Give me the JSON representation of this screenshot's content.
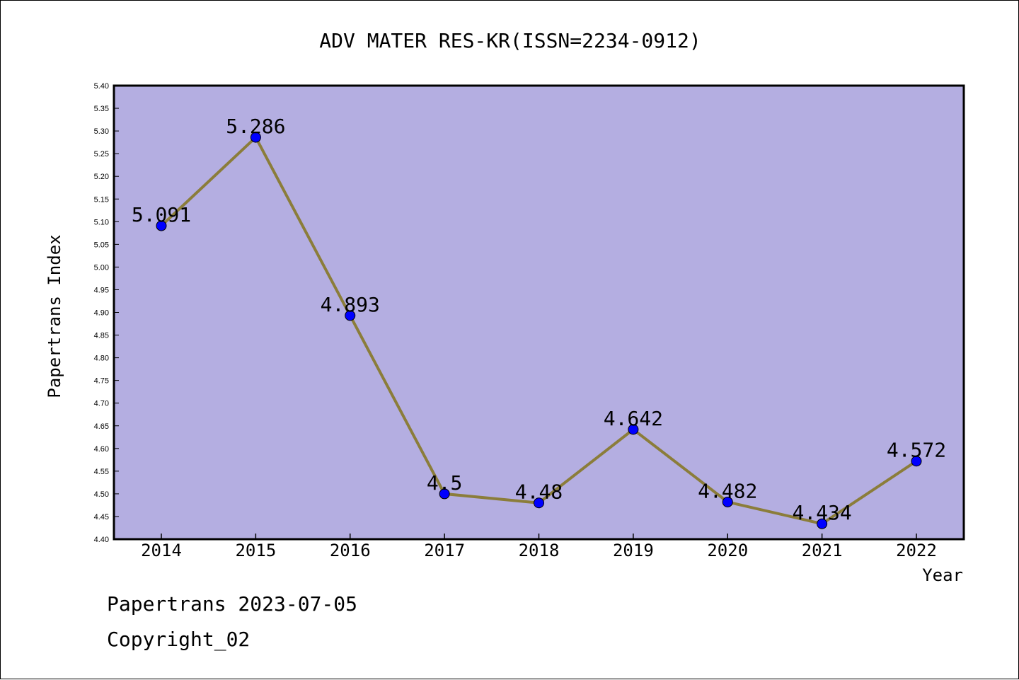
{
  "colors": {
    "plot_background": "#b4aee1",
    "line": "#8b7d3a",
    "marker": "#0000ff"
  },
  "footer": {
    "date_label": "Papertrans 2023-07-05",
    "copyright": "Copyright_02"
  },
  "chart_data": {
    "type": "line",
    "title": "ADV MATER RES-KR(ISSN=2234-0912)",
    "xlabel": "Year",
    "ylabel": "Papertrans Index",
    "ylim": [
      4.4,
      5.4
    ],
    "ytick_step": 0.05,
    "grid": false,
    "categories": [
      "2014",
      "2015",
      "2016",
      "2017",
      "2018",
      "2019",
      "2020",
      "2021",
      "2022"
    ],
    "series": [
      {
        "values": [
          5.091,
          5.286,
          4.893,
          4.5,
          4.48,
          4.642,
          4.482,
          4.434,
          4.572
        ],
        "labels": [
          "5.091",
          "5.286",
          "4.893",
          "4.5",
          "4.48",
          "4.642",
          "4.482",
          "4.434",
          "4.572"
        ]
      }
    ]
  }
}
